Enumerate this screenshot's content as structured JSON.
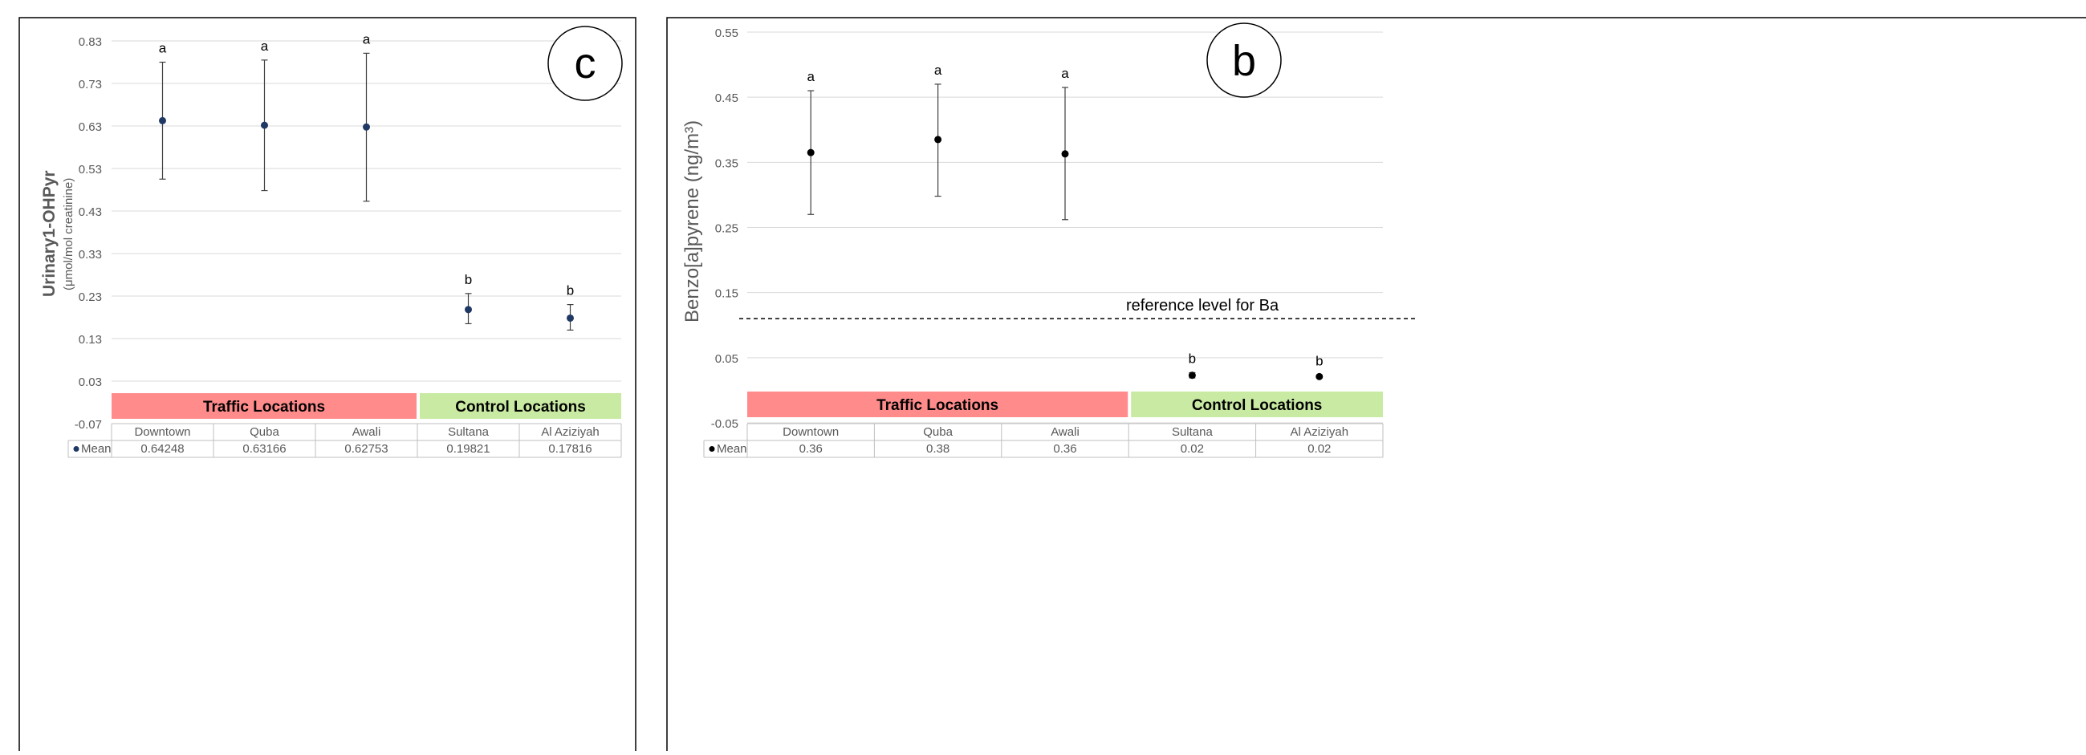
{
  "chart_data": [
    {
      "type": "scatter",
      "panel_label": "c",
      "ylabel_main": "Urinary1-OHPyr",
      "ylabel_unit": "(μmol/mol creatinine)",
      "ylim": [
        -0.07,
        0.83
      ],
      "yticks": [
        "0.83",
        "0.73",
        "0.63",
        "0.53",
        "0.43",
        "0.33",
        "0.23",
        "0.13",
        "0.03",
        "-0.07"
      ],
      "categories": [
        "Downtown",
        "Quba",
        "Awali",
        "Sultana",
        "Al Aziziyah"
      ],
      "series": [
        {
          "name": "Mean",
          "values": [
            0.64248,
            0.63166,
            0.62753,
            0.19821,
            0.17816
          ],
          "labels": [
            "0.64248",
            "0.63166",
            "0.62753",
            "0.19821",
            "0.17816"
          ],
          "err_low": [
            0.505,
            0.478,
            0.453,
            0.165,
            0.15
          ],
          "err_high": [
            0.78,
            0.785,
            0.801,
            0.236,
            0.21
          ]
        }
      ],
      "sig_letters": [
        "a",
        "a",
        "a",
        "b",
        "b"
      ],
      "groups": [
        {
          "label": "Traffic Locations",
          "span": [
            0,
            3
          ],
          "color": "#ff8b8b"
        },
        {
          "label": "Control Locations",
          "span": [
            3,
            5
          ],
          "color": "#c9eaa2"
        }
      ],
      "marker_color": "#1f3864",
      "grid": true
    },
    {
      "type": "scatter",
      "panel_label": "b",
      "ylabel": "Benzo[a]pyrene (ng/m³)",
      "ylim": [
        -0.05,
        0.55
      ],
      "yticks": [
        "0.55",
        "0.45",
        "0.35",
        "0.25",
        "0.15",
        "0.05",
        "-0.05"
      ],
      "categories": [
        "Downtown",
        "Quba",
        "Awali",
        "Sultana",
        "Al Aziziyah"
      ],
      "series": [
        {
          "name": "Mean",
          "values": [
            0.365,
            0.385,
            0.363,
            0.023,
            0.021
          ],
          "labels": [
            "0.36",
            "0.38",
            "0.36",
            "0.02",
            "0.02"
          ],
          "err_low": [
            0.27,
            0.298,
            0.262,
            0.019,
            0.019
          ],
          "err_high": [
            0.46,
            0.47,
            0.465,
            0.027,
            0.023
          ]
        }
      ],
      "sig_letters": [
        "a",
        "a",
        "a",
        "b",
        "b"
      ],
      "reference_line": {
        "value": 0.11,
        "label": "reference level for Ba"
      },
      "groups": [
        {
          "label": "Traffic Locations",
          "span": [
            0,
            3
          ],
          "color": "#ff8b8b"
        },
        {
          "label": "Control Locations",
          "span": [
            3,
            5
          ],
          "color": "#c9eaa2"
        }
      ],
      "marker_color": "#000000",
      "grid": true
    }
  ]
}
